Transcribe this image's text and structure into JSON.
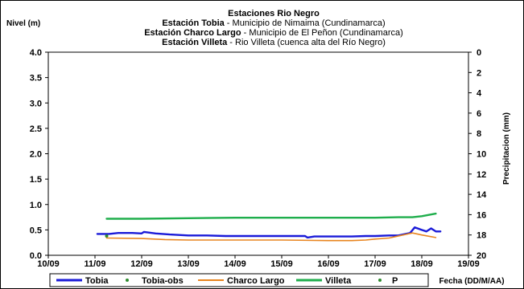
{
  "chart_data": {
    "type": "line",
    "title": "Estaciones Rio Negro",
    "subtitle_lines": [
      {
        "bold": "Estación Tobia",
        "normal": " - Municipio de Nimaima (Cundinamarca)"
      },
      {
        "bold": "Estación Charco Largo",
        "normal": " - Municipio de El Peñon (Cundinamarca)"
      },
      {
        "bold": "Estación Villeta",
        "normal": " - Rio Villeta (cuenca alta del Río Negro)"
      }
    ],
    "ylabel": "Nivel (m)",
    "y2label": "Precipitacion (mm)",
    "xlabel": "Fecha (DD/M/AA)",
    "ylim": [
      0,
      4
    ],
    "yticks": [
      0.0,
      0.5,
      1.0,
      1.5,
      2.0,
      2.5,
      3.0,
      3.5,
      4.0
    ],
    "ytick_labels": [
      "0.0",
      "0.5",
      "1.0",
      "1.5",
      "2.0",
      "2.5",
      "3.0",
      "3.5",
      "4.0"
    ],
    "y2lim": [
      20,
      0
    ],
    "y2ticks": [
      0,
      2,
      4,
      6,
      8,
      10,
      12,
      14,
      16,
      18,
      20
    ],
    "y2tick_labels": [
      "0",
      "2",
      "4",
      "6",
      "8",
      "10",
      "12",
      "14",
      "16",
      "18",
      "20"
    ],
    "xlim": [
      10,
      19
    ],
    "xtick_values": [
      10,
      11,
      12,
      13,
      14,
      15,
      16,
      17,
      18,
      19
    ],
    "xtick_labels": [
      "10/09",
      "11/09",
      "12/09",
      "13/09",
      "14/09",
      "15/09",
      "16/09",
      "17/09",
      "18/09",
      "19/09"
    ],
    "grid": false,
    "legend_position": "bottom",
    "series": [
      {
        "name": "Tobia",
        "color": "#1a1ad8",
        "style": "line",
        "points": [
          [
            11.05,
            0.42
          ],
          [
            11.3,
            0.42
          ],
          [
            11.5,
            0.44
          ],
          [
            11.8,
            0.44
          ],
          [
            12.0,
            0.43
          ],
          [
            12.05,
            0.46
          ],
          [
            12.3,
            0.43
          ],
          [
            12.6,
            0.41
          ],
          [
            12.8,
            0.4
          ],
          [
            13.0,
            0.39
          ],
          [
            13.4,
            0.39
          ],
          [
            13.8,
            0.38
          ],
          [
            14.0,
            0.38
          ],
          [
            14.5,
            0.38
          ],
          [
            15.0,
            0.38
          ],
          [
            15.5,
            0.38
          ],
          [
            15.55,
            0.35
          ],
          [
            15.7,
            0.37
          ],
          [
            16.0,
            0.37
          ],
          [
            16.5,
            0.37
          ],
          [
            16.8,
            0.38
          ],
          [
            17.0,
            0.38
          ],
          [
            17.3,
            0.39
          ],
          [
            17.5,
            0.39
          ],
          [
            17.65,
            0.42
          ],
          [
            17.75,
            0.44
          ],
          [
            17.85,
            0.55
          ],
          [
            18.0,
            0.5
          ],
          [
            18.1,
            0.47
          ],
          [
            18.2,
            0.53
          ],
          [
            18.3,
            0.47
          ],
          [
            18.4,
            0.47
          ]
        ]
      },
      {
        "name": "Tobia-obs",
        "color": "#2e8b2e",
        "style": "marker",
        "points": [
          [
            11.25,
            0.38
          ]
        ]
      },
      {
        "name": "Charco Largo",
        "color": "#e8841e",
        "style": "line",
        "points": [
          [
            11.25,
            0.34
          ],
          [
            12.0,
            0.33
          ],
          [
            12.5,
            0.31
          ],
          [
            13.0,
            0.3
          ],
          [
            14.0,
            0.3
          ],
          [
            15.0,
            0.3
          ],
          [
            16.0,
            0.29
          ],
          [
            16.5,
            0.29
          ],
          [
            16.8,
            0.3
          ],
          [
            17.0,
            0.32
          ],
          [
            17.3,
            0.34
          ],
          [
            17.6,
            0.4
          ],
          [
            17.8,
            0.44
          ],
          [
            18.0,
            0.4
          ],
          [
            18.3,
            0.35
          ]
        ]
      },
      {
        "name": "Villeta",
        "color": "#1fae4c",
        "style": "line",
        "points": [
          [
            11.25,
            0.72
          ],
          [
            12.0,
            0.72
          ],
          [
            13.0,
            0.73
          ],
          [
            14.0,
            0.74
          ],
          [
            15.0,
            0.74
          ],
          [
            16.0,
            0.74
          ],
          [
            17.0,
            0.74
          ],
          [
            17.5,
            0.75
          ],
          [
            17.8,
            0.75
          ],
          [
            18.0,
            0.77
          ],
          [
            18.3,
            0.82
          ]
        ]
      },
      {
        "name": "P",
        "color": "#2e8b2e",
        "style": "marker",
        "points": []
      }
    ]
  }
}
